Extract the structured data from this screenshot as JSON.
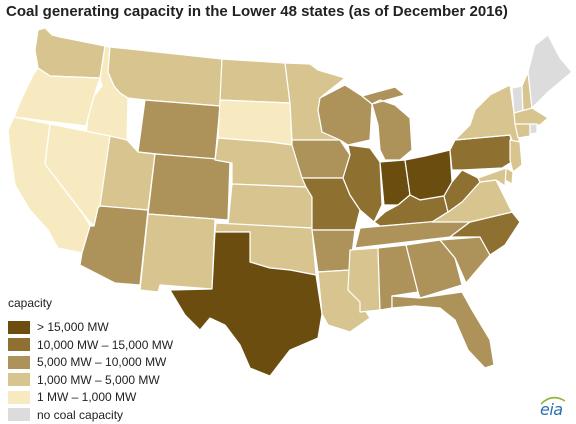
{
  "title": "Coal generating capacity in the Lower 48 states (as of December 2016)",
  "legend": {
    "title": "capacity",
    "items": [
      {
        "label": "> 15,000 MW",
        "color": "#6b4e0f"
      },
      {
        "label": "10,000 MW – 15,000 MW",
        "color": "#8e7030"
      },
      {
        "label": "5,000 MW – 10,000 MW",
        "color": "#ad935a"
      },
      {
        "label": "1,000 MW – 5,000 MW",
        "color": "#d7c48f"
      },
      {
        "label": "1 MW – 1,000 MW",
        "color": "#f8eac0"
      },
      {
        "label": "no coal capacity",
        "color": "#dcdcdc"
      }
    ]
  },
  "logo": "eia",
  "map_data": {
    "classes": {
      "c1": "> 15,000 MW",
      "c2": "10,000 MW – 15,000 MW",
      "c3": "5,000 MW – 10,000 MW",
      "c4": "1,000 MW – 5,000 MW",
      "c5": "1 MW – 1,000 MW",
      "c6": "no coal capacity"
    },
    "states": {
      "WA": "c4",
      "OR": "c5",
      "CA": "c5",
      "ID": "c5",
      "NV": "c5",
      "MT": "c4",
      "WY": "c3",
      "UT": "c4",
      "AZ": "c3",
      "CO": "c3",
      "NM": "c4",
      "ND": "c4",
      "SD": "c5",
      "NE": "c4",
      "KS": "c4",
      "OK": "c4",
      "TX": "c1",
      "MN": "c4",
      "IA": "c3",
      "MO": "c2",
      "AR": "c3",
      "LA": "c4",
      "WI": "c3",
      "IL": "c2",
      "MI": "c3",
      "IN": "c1",
      "OH": "c1",
      "KY": "c2",
      "TN": "c3",
      "MS": "c4",
      "AL": "c3",
      "GA": "c3",
      "FL": "c3",
      "SC": "c3",
      "NC": "c2",
      "VA": "c4",
      "WV": "c2",
      "PA": "c2",
      "NY": "c4",
      "NJ": "c4",
      "DE": "c4",
      "MD": "c4",
      "ME": "c6",
      "VT": "c6",
      "NH": "c4",
      "MA": "c4",
      "CT": "c4",
      "RI": "c6"
    }
  }
}
